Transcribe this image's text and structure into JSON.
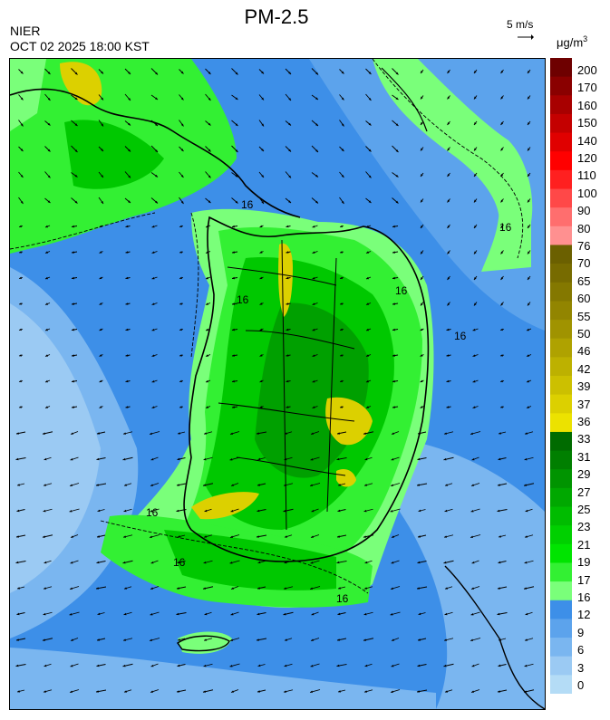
{
  "header": {
    "agency": "NIER",
    "valid_time": "OCT 02 2025 18:00 KST",
    "title": "PM-2.5"
  },
  "wind_reference": {
    "label": "5 m/s",
    "arrow_icon": "right-arrow-icon"
  },
  "legend": {
    "unit": "μg/m",
    "unit_superscript": "3",
    "labels": [
      "200",
      "170",
      "160",
      "150",
      "140",
      "120",
      "110",
      "100",
      "90",
      "80",
      "76",
      "70",
      "65",
      "60",
      "55",
      "50",
      "46",
      "42",
      "39",
      "37",
      "36",
      "33",
      "31",
      "29",
      "27",
      "25",
      "23",
      "21",
      "19",
      "17",
      "16",
      "12",
      "9",
      "6",
      "3",
      "0"
    ],
    "bands": [
      {
        "color": "#6e0000"
      },
      {
        "color": "#8a0000"
      },
      {
        "color": "#a80000"
      },
      {
        "color": "#c40000"
      },
      {
        "color": "#e00000"
      },
      {
        "color": "#ff0000"
      },
      {
        "color": "#ff2020"
      },
      {
        "color": "#ff4848"
      },
      {
        "color": "#ff6e6e"
      },
      {
        "color": "#ff9090"
      },
      {
        "color": "#6b6000"
      },
      {
        "color": "#776b00"
      },
      {
        "color": "#847800"
      },
      {
        "color": "#928500"
      },
      {
        "color": "#a09300"
      },
      {
        "color": "#afa200"
      },
      {
        "color": "#bdb100"
      },
      {
        "color": "#ccc000"
      },
      {
        "color": "#dcd000"
      },
      {
        "color": "#ece200"
      },
      {
        "color": "#006b00"
      },
      {
        "color": "#007f00"
      },
      {
        "color": "#009400"
      },
      {
        "color": "#00a800"
      },
      {
        "color": "#00bc00"
      },
      {
        "color": "#00d000"
      },
      {
        "color": "#00e400"
      },
      {
        "color": "#33f033"
      },
      {
        "color": "#7aff7a"
      },
      {
        "color": "#3d8fe8"
      },
      {
        "color": "#5ca3ec"
      },
      {
        "color": "#7ab6f0"
      },
      {
        "color": "#9bcaf3"
      },
      {
        "color": "#b4dcf6"
      }
    ]
  },
  "contour_labels": [
    "16",
    "16",
    "16",
    "16",
    "16",
    "16",
    "16",
    "16"
  ],
  "map_colors": {
    "background": "#3d8fe8",
    "light_blue": "#7ab6f0",
    "pale_blue": "#9bcaf3",
    "light_green": "#7aff7a",
    "green": "#33f033",
    "mid_green": "#00c800",
    "dark_green": "#00a000",
    "yellow": "#dcd000",
    "olive": "#bdb100"
  }
}
